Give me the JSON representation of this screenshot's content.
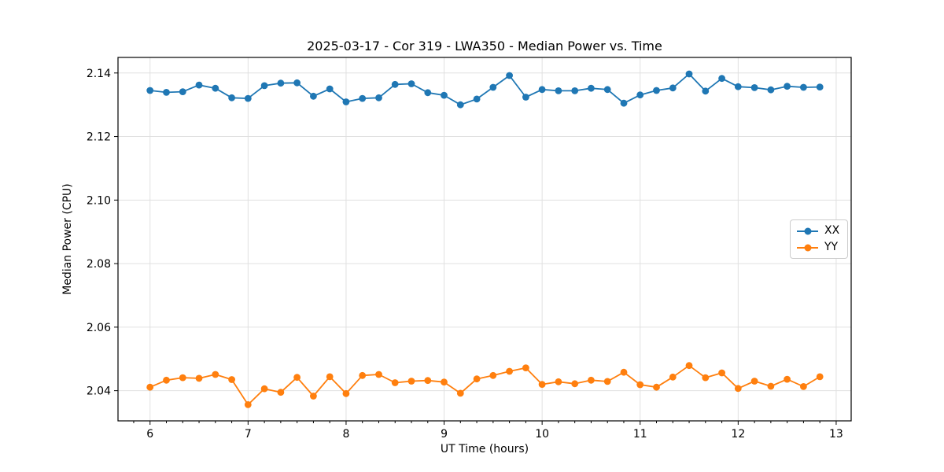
{
  "figure": {
    "background": "#ffffff",
    "spine_color": "#000000",
    "grid_color": "#e0e0e0",
    "tick_label_color": "#000000"
  },
  "chart_data": {
    "type": "line",
    "title": "2025-03-17 - Cor 319 - LWA350 - Median Power vs. Time",
    "xlabel": "UT Time (hours)",
    "ylabel": "Median Power (CPU)",
    "xlim": [
      5.673,
      13.153
    ],
    "ylim": [
      2.0305,
      2.1449
    ],
    "x_major_ticks": [
      6,
      7,
      8,
      9,
      10,
      11,
      12,
      13
    ],
    "x_minor_tick_step": 0.166667,
    "y_ticks": [
      2.04,
      2.06,
      2.08,
      2.1,
      2.12,
      2.14
    ],
    "grid": true,
    "legend": {
      "position": "center-right",
      "entries": [
        "XX",
        "YY"
      ]
    },
    "x": [
      6.0,
      6.1667,
      6.3333,
      6.5,
      6.6667,
      6.8333,
      7.0,
      7.1667,
      7.3333,
      7.5,
      7.6667,
      7.8333,
      8.0,
      8.1667,
      8.3333,
      8.5,
      8.6667,
      8.8333,
      9.0,
      9.1667,
      9.3333,
      9.5,
      9.6667,
      9.8333,
      10.0,
      10.1667,
      10.3333,
      10.5,
      10.6667,
      10.8333,
      11.0,
      11.1667,
      11.3333,
      11.5,
      11.6667,
      11.8333,
      12.0,
      12.1667,
      12.3333,
      12.5,
      12.6667,
      12.8333
    ],
    "series": [
      {
        "name": "XX",
        "color": "#1f77b4",
        "values": [
          2.1345,
          2.1339,
          2.1341,
          2.1362,
          2.1352,
          2.1322,
          2.132,
          2.136,
          2.1368,
          2.1369,
          2.1327,
          2.135,
          2.1309,
          2.132,
          2.1322,
          2.1364,
          2.1366,
          2.1338,
          2.133,
          2.13,
          2.1318,
          2.1355,
          2.1392,
          2.1324,
          2.1348,
          2.1344,
          2.1344,
          2.1352,
          2.1348,
          2.1305,
          2.1331,
          2.1345,
          2.1353,
          2.1397,
          2.1343,
          2.1383,
          2.1357,
          2.1354,
          2.1347,
          2.1358,
          2.1355,
          2.1356
        ]
      },
      {
        "name": "YY",
        "color": "#ff7f0e",
        "values": [
          2.0411,
          2.0433,
          2.0441,
          2.0439,
          2.0451,
          2.0435,
          2.0356,
          2.0406,
          2.0395,
          2.0442,
          2.0383,
          2.0444,
          2.0391,
          2.0448,
          2.0451,
          2.0425,
          2.043,
          2.0432,
          2.0427,
          2.0392,
          2.0437,
          2.0448,
          2.0461,
          2.0472,
          2.042,
          2.0428,
          2.0422,
          2.0433,
          2.0429,
          2.0458,
          2.0419,
          2.0411,
          2.0443,
          2.0479,
          2.0441,
          2.0456,
          2.0407,
          2.043,
          2.0414,
          2.0436,
          2.0413,
          2.0444
        ]
      }
    ]
  }
}
